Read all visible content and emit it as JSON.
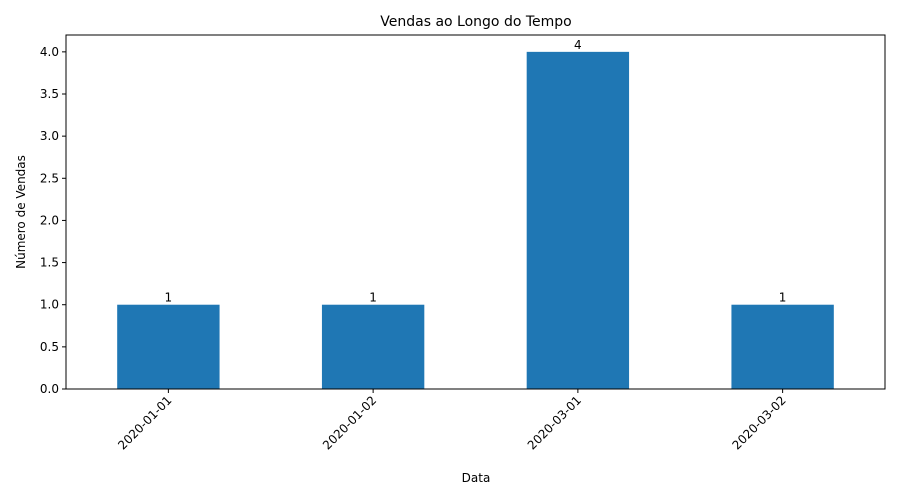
{
  "chart_data": {
    "type": "bar",
    "title": "Vendas ao Longo do Tempo",
    "xlabel": "Data",
    "ylabel": "Número de Vendas",
    "categories": [
      "2020-01-01",
      "2020-01-02",
      "2020-03-01",
      "2020-03-02"
    ],
    "values": [
      1,
      1,
      4,
      1
    ],
    "data_labels": [
      "1",
      "1",
      "4",
      "1"
    ],
    "ylim": [
      0,
      4.2
    ],
    "yticks": [
      0.0,
      0.5,
      1.0,
      1.5,
      2.0,
      2.5,
      3.0,
      3.5,
      4.0
    ],
    "ytick_labels": [
      "0.0",
      "0.5",
      "1.0",
      "1.5",
      "2.0",
      "2.5",
      "3.0",
      "3.5",
      "4.0"
    ],
    "grid": false,
    "legend": "none",
    "bar_color": "#1f77b4"
  }
}
